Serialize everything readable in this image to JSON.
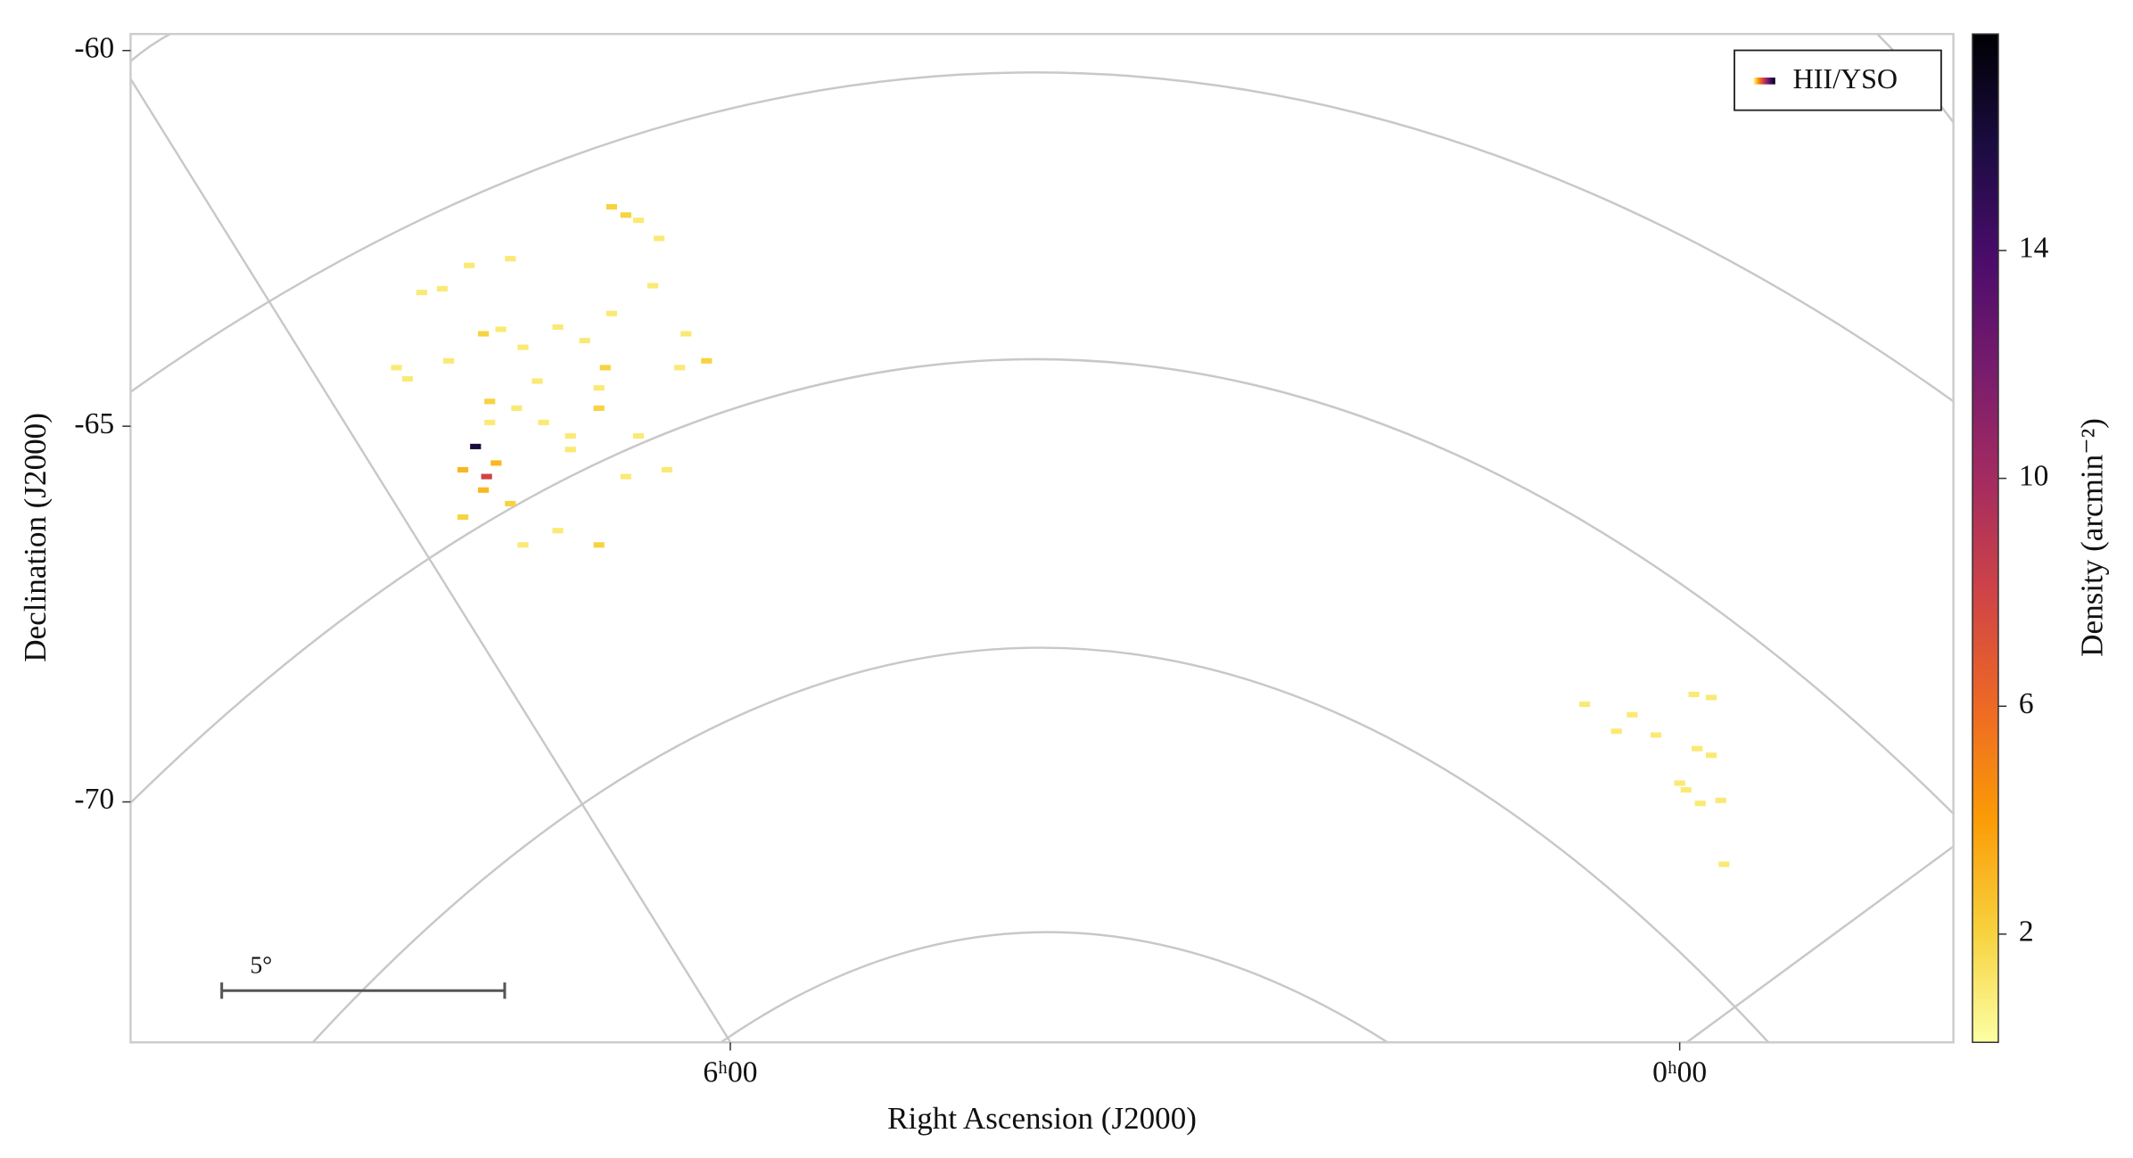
{
  "chart_data": {
    "type": "density_map",
    "xlabel": "Right Ascension (J2000)",
    "ylabel": "Declination (J2000)",
    "colorbar_label": "Density (arcmin⁻²)",
    "legend_label": "HII/YSO",
    "scale_bar_label": "5°",
    "xlim": [
      9.79,
      -1.73
    ],
    "ylim": [
      -59.78,
      -73.2
    ],
    "xticks": [
      {
        "value": 6,
        "label": "6ʰ00"
      },
      {
        "value": 0,
        "label": "0ʰ00"
      }
    ],
    "yticks": [
      -60,
      -65,
      -70
    ],
    "clim": [
      0.1,
      17.8
    ],
    "cticks": [
      2,
      6,
      10,
      14
    ],
    "colormap": [
      "#fcffa4",
      "#f7d13d",
      "#fb9b06",
      "#ed6925",
      "#cf4446",
      "#a52c60",
      "#781c6d",
      "#4a0c6b",
      "#1b0c41",
      "#000004"
    ],
    "x": [
      6.66,
      6.58,
      6.75,
      6.45,
      7.65,
      7.39,
      7.95,
      7.82,
      7.56,
      7.45,
      7.31,
      7.09,
      6.92,
      6.79,
      6.32,
      6.15,
      8.11,
      8.04,
      7.78,
      7.52,
      7.35,
      7.18,
      7.01,
      6.83,
      6.58,
      7.61,
      7.54,
      7.69,
      7.48,
      7.39,
      7.69,
      7.31,
      7.09,
      6.83,
      6.66,
      6.4,
      7.01,
      7.22,
      6.75,
      6.49,
      6.28,
      6.83,
      7.56,
      7.52,
      0.6,
      0.4,
      0.3,
      0.15,
      -0.09,
      -0.2,
      -0.11,
      -0.2,
      -0.04,
      -0.13,
      -0.26,
      0.0,
      -0.28
    ],
    "y": [
      -62.19,
      -62.26,
      -62.08,
      -62.5,
      -62.86,
      -62.77,
      -63.22,
      -63.17,
      -63.77,
      -63.71,
      -63.95,
      -63.68,
      -63.86,
      -64.22,
      -64.22,
      -64.13,
      -64.22,
      -64.37,
      -64.13,
      -64.67,
      -64.76,
      -64.95,
      -65.13,
      -64.76,
      -65.13,
      -65.27,
      -65.67,
      -65.58,
      -65.49,
      -66.03,
      -66.21,
      -66.58,
      -66.39,
      -66.58,
      -65.67,
      -65.58,
      -65.31,
      -64.4,
      -63.5,
      -63.13,
      -63.77,
      -64.49,
      -65.85,
      -64.95,
      -68.7,
      -69.06,
      -68.84,
      -69.11,
      -68.57,
      -68.61,
      -69.29,
      -69.38,
      -69.84,
      -70.02,
      -69.98,
      -69.75,
      -70.83
    ],
    "values": [
      2,
      1,
      2,
      1,
      1,
      1,
      1,
      1,
      2,
      1,
      1,
      1,
      1,
      2,
      1,
      2,
      1,
      1,
      1,
      2,
      1,
      1,
      1,
      2,
      1,
      16,
      8,
      3,
      3,
      2,
      2,
      1,
      1,
      2,
      1,
      1,
      1,
      1,
      1,
      1,
      1,
      1,
      3,
      1,
      1,
      1,
      1,
      1,
      1,
      1,
      1,
      1,
      1,
      1,
      1,
      1,
      1
    ]
  }
}
